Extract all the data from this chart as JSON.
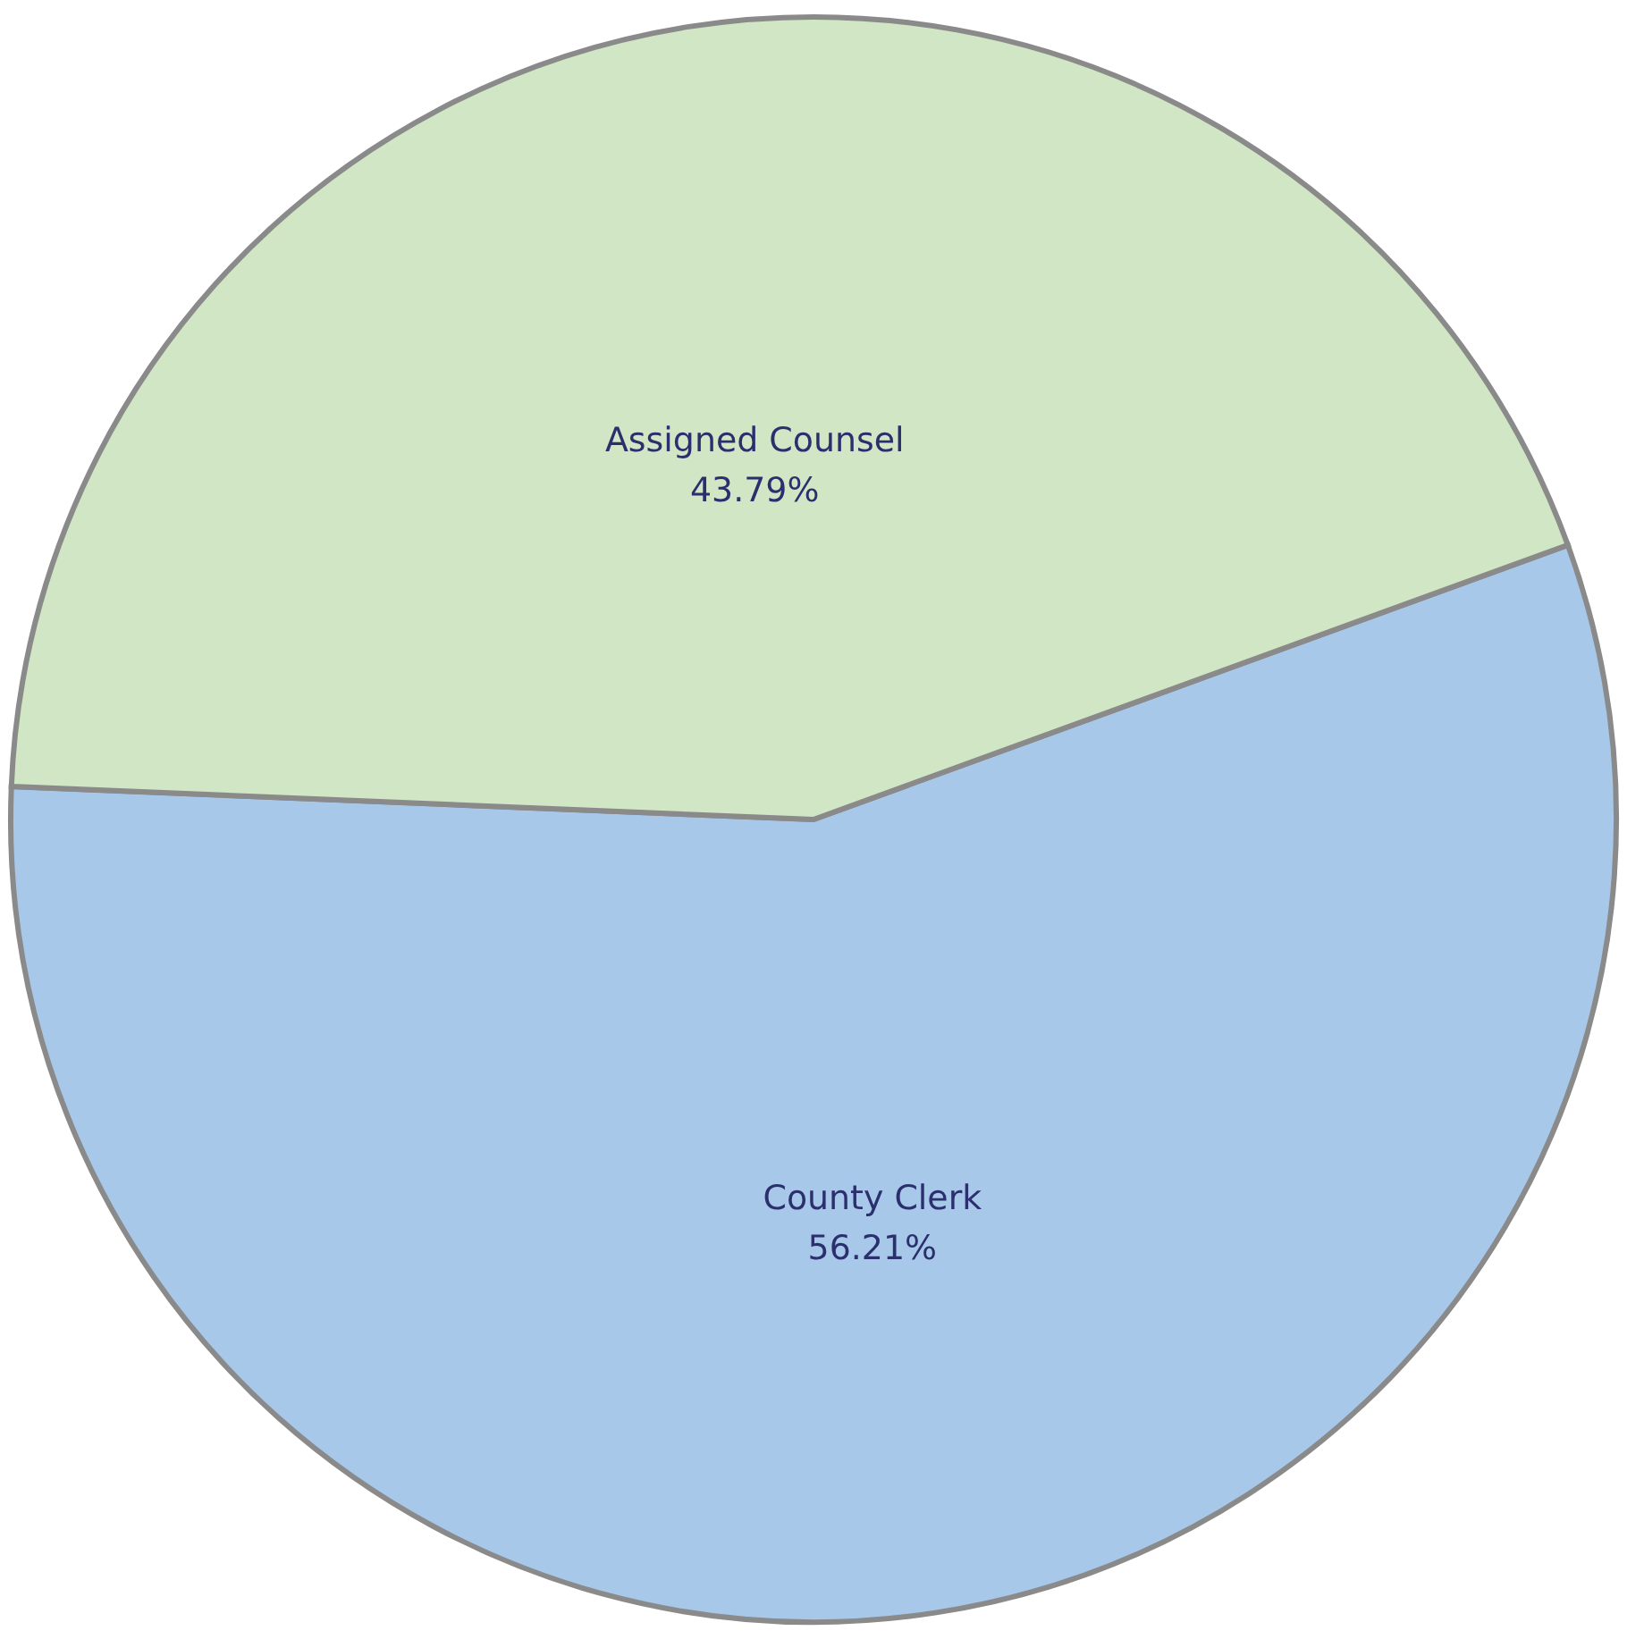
{
  "chart_data": {
    "type": "pie",
    "categories": [
      "County Clerk",
      "Assigned Counsel"
    ],
    "values": [
      56.21,
      43.79
    ],
    "colors": [
      "#a8c8e9",
      "#d0e6c4"
    ],
    "value_labels": [
      "56.21%",
      "43.79%"
    ]
  }
}
